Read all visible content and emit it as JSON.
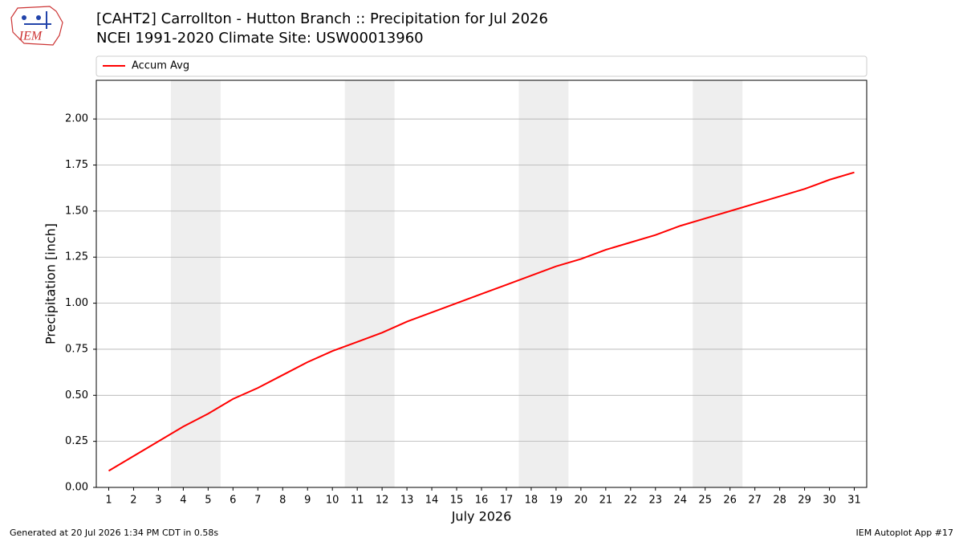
{
  "chart_data": {
    "type": "line",
    "title": "[CAHT2] Carrollton - Hutton Branch :: Precipitation for Jul 2026",
    "subtitle": "NCEI 1991-2020 Climate Site: USW00013960",
    "logo_text": "IEM",
    "xlabel": "July 2026",
    "ylabel": "Precipitation [inch]",
    "x": [
      1,
      2,
      3,
      4,
      5,
      6,
      7,
      8,
      9,
      10,
      11,
      12,
      13,
      14,
      15,
      16,
      17,
      18,
      19,
      20,
      21,
      22,
      23,
      24,
      25,
      26,
      27,
      28,
      29,
      30,
      31
    ],
    "series": [
      {
        "name": "Accum Avg",
        "color": "#ff0000",
        "values": [
          0.09,
          0.17,
          0.25,
          0.33,
          0.4,
          0.48,
          0.54,
          0.61,
          0.68,
          0.74,
          0.79,
          0.84,
          0.9,
          0.95,
          1.0,
          1.05,
          1.1,
          1.15,
          1.2,
          1.24,
          1.29,
          1.33,
          1.37,
          1.42,
          1.46,
          1.5,
          1.54,
          1.58,
          1.62,
          1.67,
          1.71
        ]
      }
    ],
    "xlim": [
      0.5,
      31.5
    ],
    "xticks": [
      1,
      2,
      3,
      4,
      5,
      6,
      7,
      8,
      9,
      10,
      11,
      12,
      13,
      14,
      15,
      16,
      17,
      18,
      19,
      20,
      21,
      22,
      23,
      24,
      25,
      26,
      27,
      28,
      29,
      30,
      31
    ],
    "ylim": [
      0,
      2.21
    ],
    "yticks": [
      {
        "value": 0,
        "label": "0.00"
      },
      {
        "value": 0.25,
        "label": "0.25"
      },
      {
        "value": 0.5,
        "label": "0.50"
      },
      {
        "value": 0.75,
        "label": "0.75"
      },
      {
        "value": 1,
        "label": "1.00"
      },
      {
        "value": 1.25,
        "label": "1.25"
      },
      {
        "value": 1.5,
        "label": "1.50"
      },
      {
        "value": 1.75,
        "label": "1.75"
      },
      {
        "value": 2,
        "label": "2.00"
      }
    ],
    "shaded_spans": [
      [
        3.5,
        5.5
      ],
      [
        10.5,
        12.5
      ],
      [
        17.5,
        19.5
      ],
      [
        24.5,
        26.5
      ]
    ],
    "shade_color": "#eeeeee",
    "grid": true,
    "legend": "top",
    "footer_left": "Generated at 20 Jul 2026 1:34 PM CDT in 0.58s",
    "footer_right": "IEM Autoplot App #17"
  }
}
